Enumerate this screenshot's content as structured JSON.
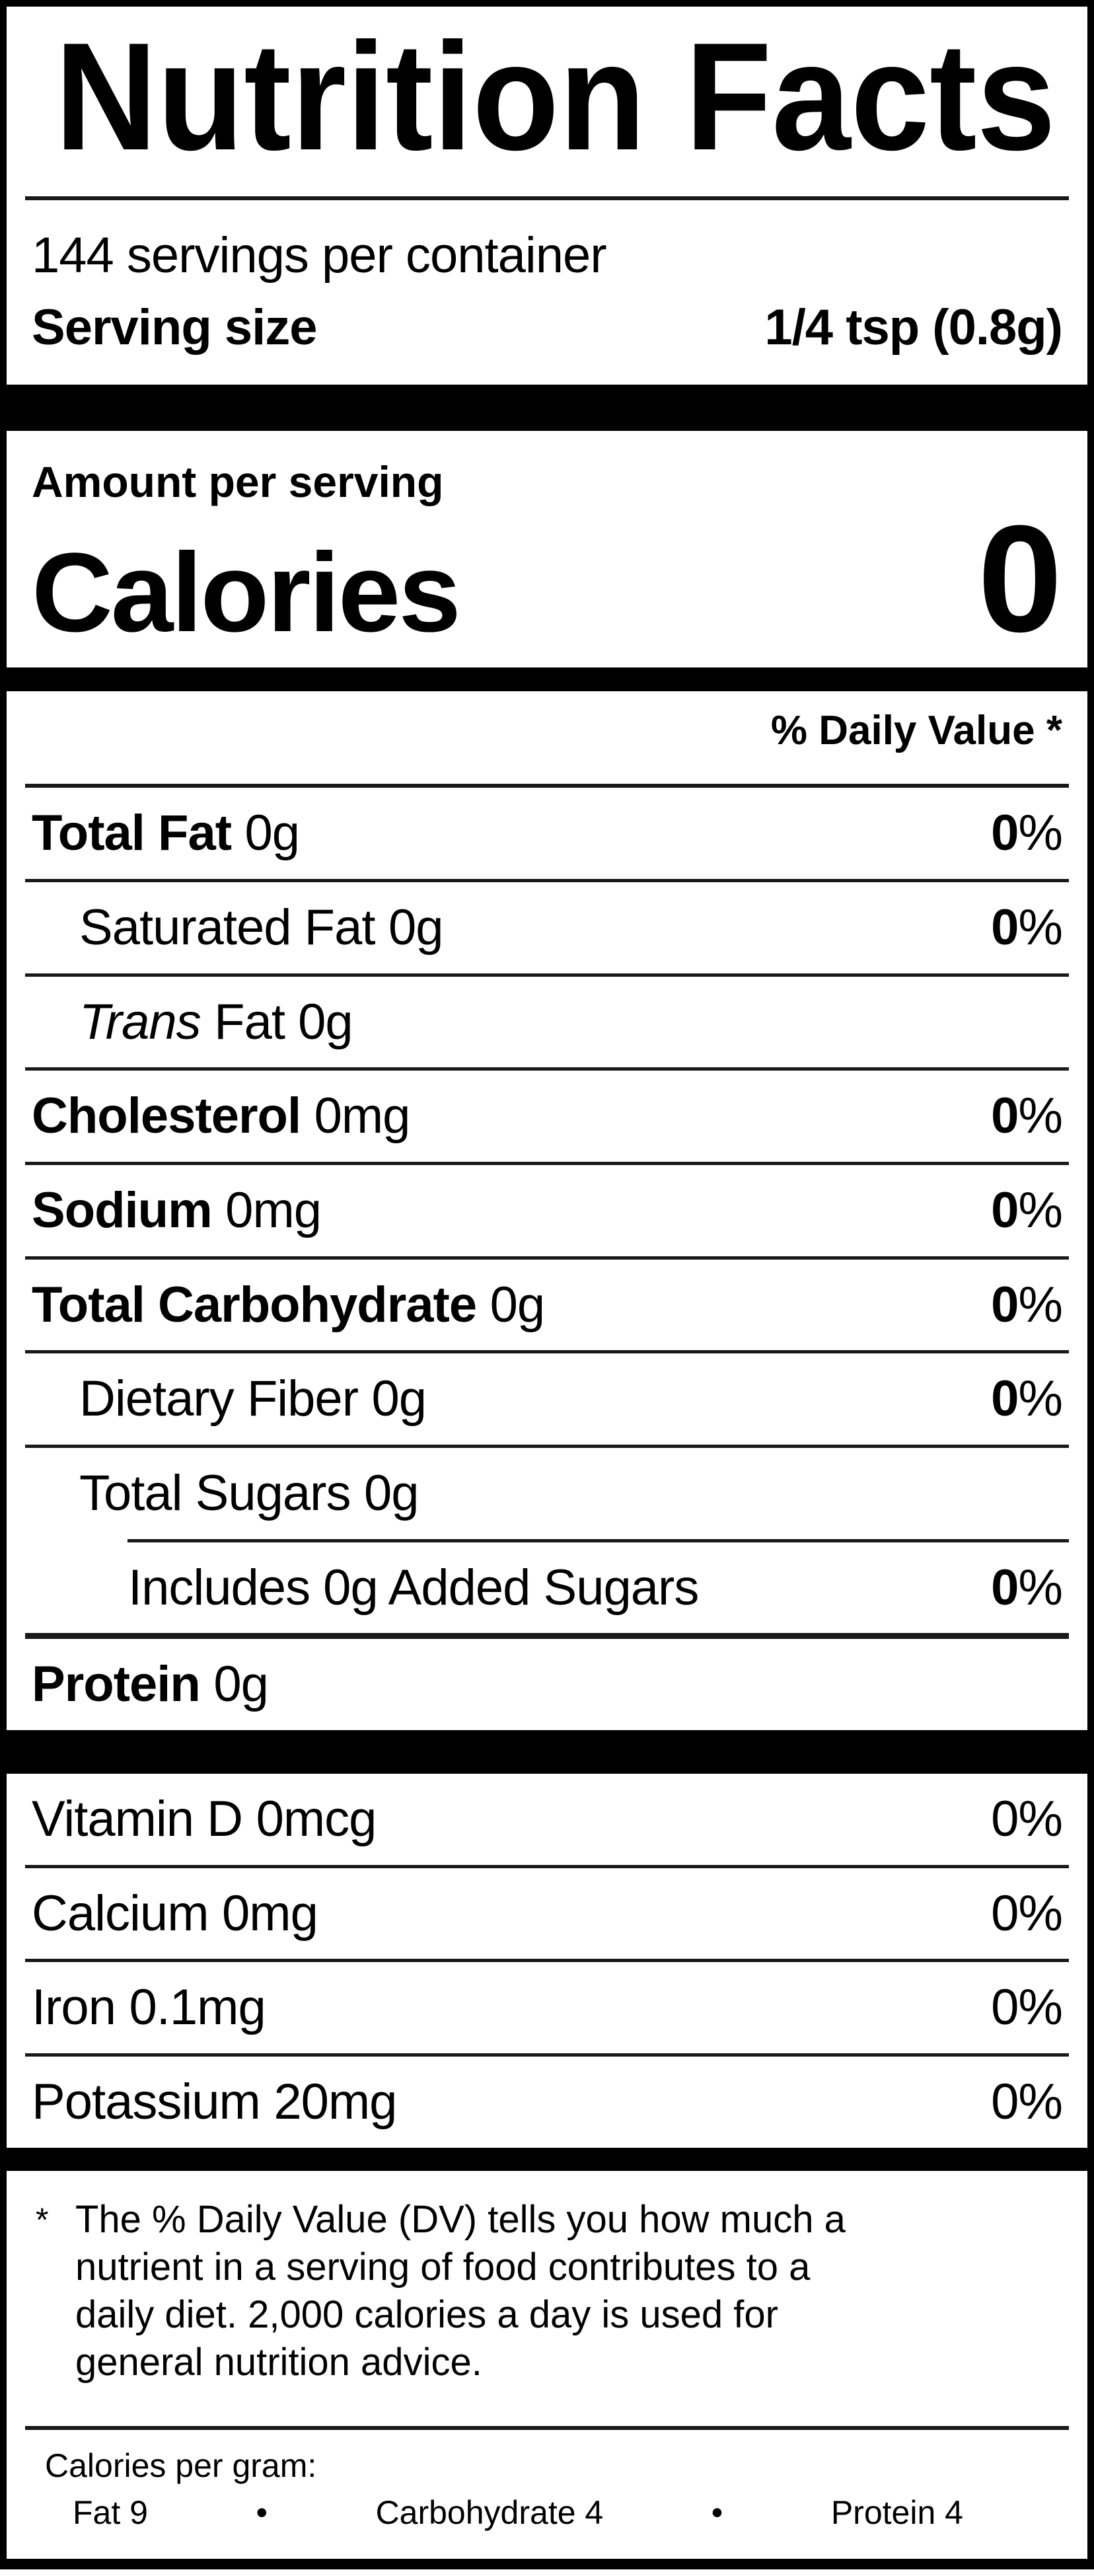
{
  "label": {
    "title": "Nutrition Facts",
    "servings_per_container": "144 servings per container",
    "serving_size": {
      "label": "Serving size",
      "value": "1/4 tsp (0.8g)"
    },
    "amount_per_serving": "Amount per serving",
    "calories": {
      "label": "Calories",
      "value": "0"
    },
    "daily_value_header": "% Daily Value *",
    "nutrients": [
      {
        "name": "Total Fat",
        "amount": "0g",
        "dv": "0",
        "pct": "%"
      },
      {
        "name": "Saturated Fat",
        "amount": "0g",
        "dv": "0",
        "pct": "%"
      },
      {
        "name": "Trans",
        "rest": "Fat 0g"
      },
      {
        "name": "Cholesterol",
        "amount": "0mg",
        "dv": "0",
        "pct": "%"
      },
      {
        "name": "Sodium",
        "amount": "0mg",
        "dv": "0",
        "pct": "%"
      },
      {
        "name": "Total Carbohydrate",
        "amount": "0g",
        "dv": "0",
        "pct": "%"
      },
      {
        "name": "Dietary Fiber",
        "amount": "0g",
        "dv": "0",
        "pct": "%"
      },
      {
        "name": "Total Sugars",
        "amount": "0g"
      },
      {
        "name": "Includes 0g Added Sugars",
        "dv": "0",
        "pct": "%"
      },
      {
        "name": "Protein",
        "amount": "0g"
      }
    ],
    "vitamins": [
      {
        "name": "Vitamin D",
        "amount": "0mcg",
        "dv": "0%"
      },
      {
        "name": "Calcium",
        "amount": "0mg",
        "dv": "0%"
      },
      {
        "name": "Iron",
        "amount": "0.1mg",
        "dv": "0%"
      },
      {
        "name": "Potassium",
        "amount": "20mg",
        "dv": "0%"
      }
    ],
    "footnote": {
      "asterisk": "*",
      "lines": [
        "The % Daily Value (DV) tells you how much a",
        "nutrient in a serving of food contributes to a",
        "daily diet. 2,000 calories a day is used for",
        "general nutrition advice."
      ]
    },
    "calories_per_gram": {
      "heading": "Calories per gram:",
      "bullet": "•",
      "items": [
        "Fat 9",
        "Carbohydrate 4",
        "Protein 4"
      ]
    }
  }
}
